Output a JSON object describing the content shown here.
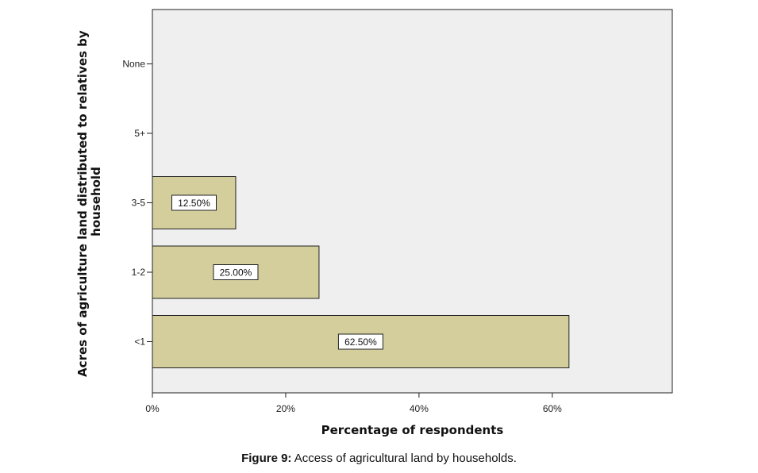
{
  "chart_data": {
    "type": "bar",
    "orientation": "horizontal",
    "categories": [
      "None",
      "5+",
      "3-5",
      "1-2",
      "<1"
    ],
    "values": [
      0,
      0,
      12.5,
      25.0,
      62.5
    ],
    "data_labels": [
      "",
      "",
      "12.50%",
      "25.00%",
      "62.50%"
    ],
    "xlabel": "Percentage of respondents",
    "ylabel_lines": [
      "Acres of agriculture land distributed to relatives by",
      "household"
    ],
    "xlim": [
      0,
      78
    ],
    "xticks": [
      0,
      20,
      40,
      60
    ],
    "xtick_labels": [
      "0%",
      "20%",
      "40%",
      "60%"
    ],
    "grid": false,
    "colors": {
      "bar": "#d3ce9c",
      "plot_bg": "#efefef",
      "border": "#222222",
      "label_bg": "#ffffff"
    }
  },
  "caption": {
    "prefix": "Figure 9:",
    "text": " Access of agricultural land by households."
  }
}
